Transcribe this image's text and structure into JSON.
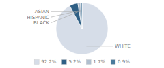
{
  "chart_data": {
    "type": "pie",
    "categories": [
      "WHITE",
      "ASIAN",
      "HISPANIC",
      "BLACK"
    ],
    "values": [
      92.2,
      5.2,
      1.7,
      0.9
    ],
    "value_labels": [
      "92.2%",
      "5.2%",
      "1.7%",
      "0.9%"
    ],
    "colors": [
      "#d6dde8",
      "#2e5f85",
      "#b0bfcf",
      "#4a7a9b"
    ],
    "legend": "bottom"
  }
}
